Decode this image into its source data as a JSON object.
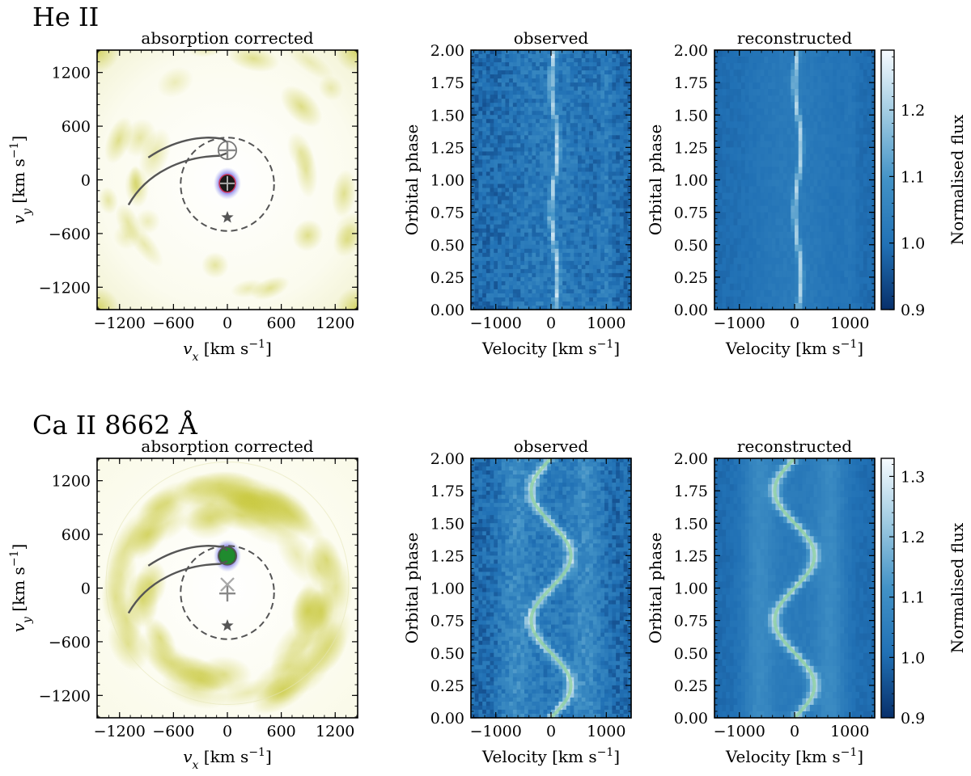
{
  "rows": [
    {
      "line_label": "He II",
      "tomogram": {
        "title": "absorption corrected",
        "xlabel": "v_x [km s^-1]",
        "ylabel": "v_y [km s^-1]",
        "xlim": [
          -1450,
          1450
        ],
        "ylim": [
          -1450,
          1450
        ],
        "xticks": [
          -1200,
          -600,
          0,
          600,
          1200
        ],
        "yticks": [
          -1200,
          -600,
          0,
          600,
          1200
        ],
        "emission_spot": {
          "vx": 0,
          "vy": -40,
          "color": "#1a1a1a"
        },
        "star_marker": {
          "vx": 0,
          "vy": -420
        },
        "ring_center": {
          "vx": 0,
          "vy": -50
        },
        "ring_radius": 520,
        "donor_circle": {
          "vx": 0,
          "vy": 330,
          "r": 100
        }
      },
      "observed": {
        "title": "observed",
        "xlabel": "Velocity [km s^-1]",
        "ylabel": "Orbital phase",
        "xlim": [
          -1450,
          1450
        ],
        "ylim": [
          0,
          2
        ],
        "xticks": [
          -1000,
          0,
          1000
        ],
        "yticks": [
          "0.00",
          "0.25",
          "0.50",
          "0.75",
          "1.00",
          "1.25",
          "1.50",
          "1.75",
          "2.00"
        ]
      },
      "reconstructed": {
        "title": "reconstructed",
        "xlabel": "Velocity [km s^-1]",
        "ylabel": "Orbital phase",
        "xlim": [
          -1450,
          1450
        ],
        "ylim": [
          0,
          2
        ],
        "xticks": [
          -1000,
          0,
          1000
        ],
        "yticks": [
          "0.00",
          "0.25",
          "0.50",
          "0.75",
          "1.00",
          "1.25",
          "1.50",
          "1.75",
          "2.00"
        ]
      },
      "trail_model": {
        "gamma": 60,
        "amplitude": 60,
        "width": 45,
        "overlay_curve": false
      },
      "colorbar": {
        "label": "Normalised flux",
        "vmin": 0.9,
        "vmax": 1.29,
        "ticks": [
          "0.9",
          "1.0",
          "1.1",
          "1.2"
        ]
      }
    },
    {
      "line_label": "Ca II 8662 Å",
      "tomogram": {
        "title": "absorption corrected",
        "xlabel": "v_x [km s^-1]",
        "ylabel": "v_y [km s^-1]",
        "xlim": [
          -1450,
          1450
        ],
        "ylim": [
          -1450,
          1450
        ],
        "xticks": [
          -1200,
          -600,
          0,
          600,
          1200
        ],
        "yticks": [
          -1200,
          -600,
          0,
          600,
          1200
        ],
        "emission_spot": {
          "vx": 0,
          "vy": 360,
          "color": "#1f8a2e"
        },
        "star_marker": {
          "vx": 0,
          "vy": -420
        },
        "ring_center": {
          "vx": 0,
          "vy": -50
        },
        "ring_radius": 520,
        "donor_circle": {
          "vx": 0,
          "vy": 360,
          "r": 100
        }
      },
      "observed": {
        "title": "observed",
        "xlabel": "Velocity [km s^-1]",
        "ylabel": "Orbital phase",
        "xlim": [
          -1450,
          1450
        ],
        "ylim": [
          0,
          2
        ],
        "xticks": [
          -1000,
          0,
          1000
        ],
        "yticks": [
          "0.00",
          "0.25",
          "0.50",
          "0.75",
          "1.00",
          "1.25",
          "1.50",
          "1.75",
          "2.00"
        ]
      },
      "reconstructed": {
        "title": "reconstructed",
        "xlabel": "Velocity [km s^-1]",
        "ylabel": "Orbital phase",
        "xlim": [
          -1450,
          1450
        ],
        "ylim": [
          0,
          2
        ],
        "xticks": [
          -1000,
          0,
          1000
        ],
        "yticks": [
          "0.00",
          "0.25",
          "0.50",
          "0.75",
          "1.00",
          "1.25",
          "1.50",
          "1.75",
          "2.00"
        ]
      },
      "trail_model": {
        "gamma": 0,
        "amplitude": 360,
        "width": 110,
        "overlay_curve": true
      },
      "colorbar": {
        "label": "Normalised flux",
        "vmin": 0.9,
        "vmax": 1.33,
        "ticks": [
          "0.9",
          "1.0",
          "1.1",
          "1.2",
          "1.3"
        ]
      }
    }
  ],
  "chart_data": [
    {
      "type": "heatmap",
      "title": "absorption corrected",
      "row_label": "He II",
      "xlabel": "v_x [km s^-1]",
      "ylabel": "v_y [km s^-1]",
      "xlim": [
        -1450,
        1450
      ],
      "ylim": [
        -1450,
        1450
      ],
      "features": [
        {
          "name": "compact emission spot",
          "vx": 0,
          "vy": -40
        },
        {
          "name": "primary star marker",
          "vx": 0,
          "vy": -420
        },
        {
          "name": "Keplerian ring",
          "center_vy": -50,
          "radius": 520
        }
      ]
    },
    {
      "type": "heatmap",
      "title": "observed",
      "row_label": "He II",
      "xlabel": "Velocity [km s^-1]",
      "ylabel": "Orbital phase",
      "x_range": [
        -1450,
        1450
      ],
      "y_range": [
        0,
        2
      ],
      "narrow_component": {
        "gamma": 60,
        "K": 60
      },
      "colorbar": {
        "label": "Normalised flux",
        "range": [
          0.9,
          1.29
        ]
      }
    },
    {
      "type": "heatmap",
      "title": "reconstructed",
      "row_label": "He II",
      "xlabel": "Velocity [km s^-1]",
      "ylabel": "Orbital phase",
      "x_range": [
        -1450,
        1450
      ],
      "y_range": [
        0,
        2
      ],
      "narrow_component": {
        "gamma": 60,
        "K": 60
      },
      "colorbar": {
        "label": "Normalised flux",
        "range": [
          0.9,
          1.29
        ]
      }
    },
    {
      "type": "heatmap",
      "title": "absorption corrected",
      "row_label": "Ca II 8662 Å",
      "xlabel": "v_x [km s^-1]",
      "ylabel": "v_y [km s^-1]",
      "xlim": [
        -1450,
        1450
      ],
      "ylim": [
        -1450,
        1450
      ],
      "features": [
        {
          "name": "compact emission spot",
          "vx": 0,
          "vy": 360
        },
        {
          "name": "primary star marker",
          "vx": 0,
          "vy": -420
        },
        {
          "name": "broad emission ring",
          "radius": 700
        }
      ]
    },
    {
      "type": "heatmap",
      "title": "observed",
      "row_label": "Ca II 8662 Å",
      "xlabel": "Velocity [km s^-1]",
      "ylabel": "Orbital phase",
      "x_range": [
        -1450,
        1450
      ],
      "y_range": [
        0,
        2
      ],
      "s_wave": {
        "gamma": 0,
        "K": 360
      },
      "colorbar": {
        "label": "Normalised flux",
        "range": [
          0.9,
          1.33
        ]
      }
    },
    {
      "type": "heatmap",
      "title": "reconstructed",
      "row_label": "Ca II 8662 Å",
      "xlabel": "Velocity [km s^-1]",
      "ylabel": "Orbital phase",
      "x_range": [
        -1450,
        1450
      ],
      "y_range": [
        0,
        2
      ],
      "s_wave": {
        "gamma": 0,
        "K": 360
      },
      "colorbar": {
        "label": "Normalised flux",
        "range": [
          0.9,
          1.33
        ]
      }
    }
  ]
}
